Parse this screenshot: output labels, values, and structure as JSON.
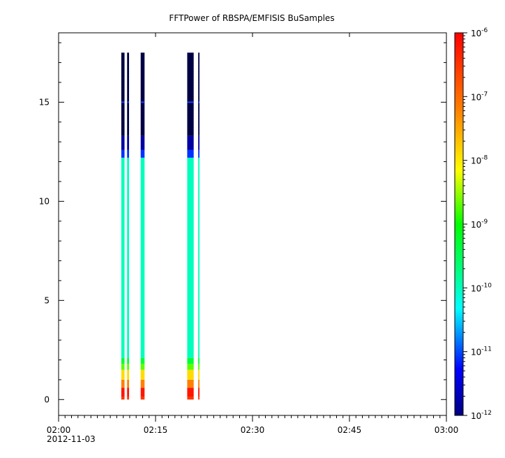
{
  "chart_data": {
    "type": "heatmap",
    "title": "FFTPower of RBSPA/EMFISIS  BuSamples",
    "xlabel": "",
    "ylabel": "",
    "x_axis": {
      "start": "2012-11-03 02:00",
      "end": "2012-11-03 03:00",
      "date_label": "2012-11-03",
      "ticks": [
        {
          "time": "02:00",
          "label": "02:00"
        },
        {
          "time": "02:15",
          "label": "02:15"
        },
        {
          "time": "02:30",
          "label": "02:30"
        },
        {
          "time": "02:45",
          "label": "02:45"
        },
        {
          "time": "03:00",
          "label": "03:00"
        }
      ],
      "minor_tick_minutes": 1
    },
    "y_axis": {
      "ylim": [
        -0.8,
        18.5
      ],
      "ticks": [
        0,
        5,
        10,
        15
      ],
      "tick_labels": [
        "0",
        "5",
        "10",
        "15"
      ]
    },
    "colorbar": {
      "scale": "log",
      "zlim": [
        "1e-12",
        "1e-6"
      ],
      "ticks": [
        {
          "base": "10",
          "exp": "-12"
        },
        {
          "base": "10",
          "exp": "-11"
        },
        {
          "base": "10",
          "exp": "-10"
        },
        {
          "base": "10",
          "exp": "-9"
        },
        {
          "base": "10",
          "exp": "-8"
        },
        {
          "base": "10",
          "exp": "-7"
        },
        {
          "base": "10",
          "exp": "-6"
        }
      ],
      "colors": [
        "#00007f",
        "#0000ff",
        "#00ffff",
        "#00ff7f",
        "#00ff00",
        "#ffff00",
        "#ff7f00",
        "#ff0000"
      ]
    },
    "data_blocks": [
      {
        "t_start": "02:09.7",
        "t_end": "02:10.2",
        "y_min": 0,
        "y_max": 17.5
      },
      {
        "t_start": "02:10.6",
        "t_end": "02:10.9",
        "y_min": 0,
        "y_max": 17.5
      },
      {
        "t_start": "02:12.7",
        "t_end": "02:13.3",
        "y_min": 0,
        "y_max": 17.5
      },
      {
        "t_start": "02:19.9",
        "t_end": "02:20.9",
        "y_min": 0,
        "y_max": 17.5
      },
      {
        "t_start": "02:21.6",
        "t_end": "02:21.8",
        "y_min": 0,
        "y_max": 17.5
      }
    ],
    "power_profile": [
      {
        "y_min": 0.0,
        "y_max": 0.15,
        "level": "-6.5"
      },
      {
        "y_min": 0.15,
        "y_max": 0.6,
        "level": "-6.2"
      },
      {
        "y_min": 0.6,
        "y_max": 1.0,
        "level": "-7.2"
      },
      {
        "y_min": 1.0,
        "y_max": 1.5,
        "level": "-7.9"
      },
      {
        "y_min": 1.5,
        "y_max": 1.8,
        "level": "-8.7"
      },
      {
        "y_min": 1.8,
        "y_max": 2.1,
        "level": "-9.3"
      },
      {
        "y_min": 2.1,
        "y_max": 12.2,
        "level": "-10.0"
      },
      {
        "y_min": 12.2,
        "y_max": 12.6,
        "level": "-11.1"
      },
      {
        "y_min": 12.6,
        "y_max": 13.3,
        "level": "-11.8"
      },
      {
        "y_min": 13.3,
        "y_max": 17.5,
        "level": "-12.0"
      }
    ]
  }
}
